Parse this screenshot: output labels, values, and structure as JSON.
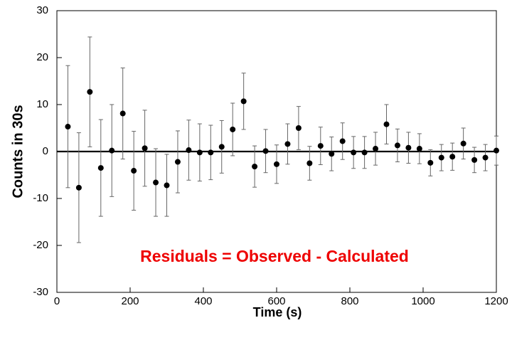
{
  "chart_data": {
    "type": "scatter",
    "xlabel": "Time (s)",
    "ylabel": "Counts in 30s",
    "annotation": "Residuals = Observed - Calculated",
    "annotation_color": "#ee0000",
    "x": [
      30,
      60,
      90,
      120,
      150,
      180,
      210,
      240,
      270,
      300,
      330,
      360,
      390,
      420,
      450,
      480,
      510,
      540,
      570,
      600,
      630,
      660,
      690,
      720,
      750,
      780,
      810,
      840,
      870,
      900,
      930,
      960,
      990,
      1020,
      1050,
      1080,
      1110,
      1140,
      1170,
      1200
    ],
    "series": [
      {
        "color": "#000000",
        "values": [
          5.3,
          -7.7,
          12.7,
          -3.5,
          0.2,
          8.1,
          -4.1,
          0.7,
          -6.6,
          -7.2,
          -2.2,
          0.3,
          -0.2,
          -0.2,
          1.0,
          4.7,
          10.7,
          -3.2,
          0.1,
          -2.7,
          1.6,
          5.0,
          -2.5,
          1.2,
          -0.5,
          2.2,
          -0.2,
          -0.2,
          0.6,
          5.8,
          1.3,
          0.8,
          0.6,
          -2.4,
          -1.3,
          -1.1,
          1.7,
          -1.8,
          -1.3,
          0.2
        ],
        "errors": [
          13,
          11.7,
          11.7,
          10.3,
          9.8,
          9.7,
          8.4,
          8.1,
          7.2,
          6.6,
          6.6,
          6.4,
          6.1,
          5.8,
          5.6,
          5.6,
          6.0,
          4.4,
          4.6,
          4.1,
          4.3,
          4.6,
          3.6,
          4.0,
          3.6,
          3.9,
          3.4,
          3.4,
          3.5,
          4.2,
          3.5,
          3.3,
          3.2,
          2.8,
          2.8,
          2.9,
          3.3,
          2.7,
          2.8,
          3.1
        ]
      }
    ],
    "xlim": [
      0,
      1200
    ],
    "xticks": [
      0,
      200,
      400,
      600,
      800,
      1000,
      1200
    ],
    "ylim": [
      -30,
      30
    ],
    "yticks": [
      -30,
      -20,
      -10,
      0,
      10,
      20,
      30
    ],
    "zero_line": true
  }
}
